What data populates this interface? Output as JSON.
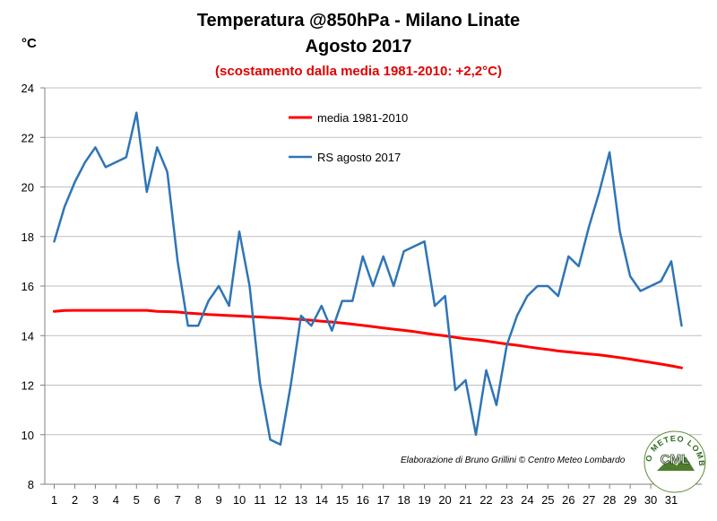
{
  "header": {
    "title": "Temperatura @850hPa - Milano Linate",
    "subtitle": "Agosto 2017",
    "anomaly_note": "(scostamento dalla media 1981-2010: +2,2°C)"
  },
  "y_unit_label": "°C",
  "credit": "Elaborazione di Bruno Grillini  © Centro Meteo Lombardo",
  "logo": {
    "text": "CML",
    "ring_text": "CENTRO METEO LOMBARDO"
  },
  "chart_data": {
    "type": "line",
    "title": "Temperatura @850hPa - Milano Linate",
    "ylabel": "°C",
    "ylim": [
      8,
      24
    ],
    "y_ticks": [
      8,
      10,
      12,
      14,
      16,
      18,
      20,
      22,
      24
    ],
    "xlim": [
      1,
      31.5
    ],
    "x_ticks": [
      1,
      2,
      3,
      4,
      5,
      6,
      7,
      8,
      9,
      10,
      11,
      12,
      13,
      14,
      15,
      16,
      17,
      18,
      19,
      20,
      21,
      22,
      23,
      24,
      25,
      26,
      27,
      28,
      29,
      30,
      31
    ],
    "grid": "horizontal",
    "legend": "inside, upper center",
    "series": [
      {
        "name": "media 1981-2010",
        "color": "#ff0000",
        "x": [
          1,
          1.5,
          2,
          2.5,
          3,
          3.5,
          4,
          4.5,
          5,
          5.5,
          6,
          6.5,
          7,
          7.5,
          8,
          8.5,
          9,
          9.5,
          10,
          10.5,
          11,
          11.5,
          12,
          12.5,
          13,
          13.5,
          14,
          14.5,
          15,
          15.5,
          16,
          16.5,
          17,
          17.5,
          18,
          18.5,
          19,
          19.5,
          20,
          20.5,
          21,
          21.5,
          22,
          22.5,
          23,
          23.5,
          24,
          24.5,
          25,
          25.5,
          26,
          26.5,
          27,
          27.5,
          28,
          28.5,
          29,
          29.5,
          30,
          30.5,
          31,
          31.5
        ],
        "y": [
          14.98,
          15.01,
          15.02,
          15.02,
          15.02,
          15.02,
          15.02,
          15.02,
          15.02,
          15.02,
          14.98,
          14.97,
          14.95,
          14.91,
          14.88,
          14.85,
          14.83,
          14.81,
          14.79,
          14.77,
          14.75,
          14.73,
          14.71,
          14.68,
          14.65,
          14.62,
          14.58,
          14.55,
          14.51,
          14.46,
          14.41,
          14.36,
          14.31,
          14.26,
          14.21,
          14.16,
          14.1,
          14.04,
          13.99,
          13.93,
          13.87,
          13.83,
          13.78,
          13.72,
          13.66,
          13.61,
          13.55,
          13.49,
          13.44,
          13.38,
          13.34,
          13.3,
          13.26,
          13.22,
          13.17,
          13.11,
          13.05,
          12.98,
          12.92,
          12.85,
          12.78,
          12.7
        ]
      },
      {
        "name": "RS agosto 2017",
        "color": "#2e75b6",
        "x": [
          1,
          1.5,
          2,
          2.5,
          3,
          3.5,
          4.5,
          5,
          5.5,
          6,
          6.5,
          7,
          7.5,
          8,
          8.5,
          9,
          9.5,
          10,
          10.5,
          11,
          11.5,
          12,
          12.5,
          13,
          13.5,
          14,
          14.5,
          15,
          15.5,
          16,
          16.5,
          17,
          17.5,
          18,
          18.5,
          19,
          19.5,
          20,
          20.5,
          21,
          21.5,
          22,
          22.5,
          23,
          23.5,
          24,
          24.5,
          25,
          25.5,
          26,
          26.5,
          27,
          27.5,
          28,
          28.5,
          29,
          29.5,
          30,
          30.5,
          31,
          31.5
        ],
        "y": [
          17.8,
          19.2,
          20.2,
          21.0,
          21.6,
          20.8,
          21.2,
          23.0,
          19.8,
          21.6,
          20.6,
          17.0,
          14.4,
          14.4,
          15.4,
          16.0,
          15.2,
          18.2,
          16.0,
          12.1,
          9.8,
          9.6,
          12.0,
          14.8,
          14.4,
          15.2,
          14.2,
          15.4,
          15.4,
          17.2,
          16.0,
          17.2,
          16.0,
          17.4,
          17.6,
          17.8,
          15.2,
          15.6,
          11.8,
          12.2,
          10.0,
          12.6,
          11.2,
          13.6,
          14.8,
          15.6,
          16.0,
          16.0,
          15.6,
          17.2,
          16.8,
          18.4,
          19.8,
          21.4,
          18.2,
          16.4,
          15.8,
          16.0,
          16.2,
          17.0,
          14.4
        ]
      }
    ]
  }
}
